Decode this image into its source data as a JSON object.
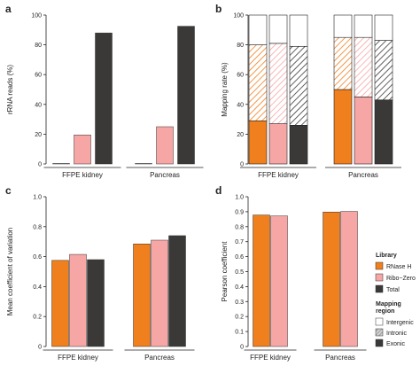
{
  "colors": {
    "rnase_h": "#f07f1e",
    "ribo_zero": "#f7a6a6",
    "total": "#3b3838",
    "axis": "#222222"
  },
  "groups": [
    "FFPE kidney",
    "Pancreas"
  ],
  "panels": [
    {
      "letter": "a"
    },
    {
      "letter": "b"
    },
    {
      "letter": "c"
    },
    {
      "letter": "d"
    }
  ],
  "legend": {
    "library_title": "Library",
    "library_items": [
      {
        "label": "RNase H",
        "color": "#f07f1e"
      },
      {
        "label": "Ribo−Zero",
        "color": "#f7a6a6"
      },
      {
        "label": "Total",
        "color": "#3b3838"
      }
    ],
    "region_title": "Mapping\nregion",
    "region_items": [
      {
        "label": "Intergenic",
        "color": "#ffffff"
      },
      {
        "label": "Intronic",
        "color": "#a8a8a8"
      },
      {
        "label": "Exonic",
        "color": "#3b3838"
      }
    ]
  },
  "chart_data": [
    {
      "panel": "a",
      "type": "bar",
      "ylabel": "rRNA reads (%)",
      "ylim": [
        0,
        100
      ],
      "yticks": [
        0,
        20,
        40,
        60,
        80,
        100
      ],
      "categories": [
        "FFPE kidney",
        "Pancreas"
      ],
      "series": [
        {
          "name": "RNase H",
          "values": [
            0.3,
            0.3
          ]
        },
        {
          "name": "Ribo−Zero",
          "values": [
            19.5,
            25.0
          ]
        },
        {
          "name": "Total",
          "values": [
            88.0,
            92.5
          ]
        }
      ]
    },
    {
      "panel": "b",
      "type": "bar",
      "stacked": true,
      "ylabel": "Mapping rate (%)",
      "ylim": [
        0,
        100
      ],
      "yticks": [
        0,
        20,
        40,
        60,
        80,
        100
      ],
      "categories": [
        "FFPE kidney",
        "Pancreas"
      ],
      "series": [
        {
          "name": "RNase H",
          "exonic": [
            29,
            50
          ],
          "intronic": [
            51,
            35
          ],
          "intergenic": [
            20,
            15
          ]
        },
        {
          "name": "Ribo−Zero",
          "exonic": [
            27,
            45
          ],
          "intronic": [
            54,
            40
          ],
          "intergenic": [
            19,
            15
          ]
        },
        {
          "name": "Total",
          "exonic": [
            26,
            43
          ],
          "intronic": [
            53,
            40
          ],
          "intergenic": [
            21,
            17
          ]
        }
      ]
    },
    {
      "panel": "c",
      "type": "bar",
      "ylabel": "Mean coefficient of variation",
      "ylim": [
        0,
        1.0
      ],
      "yticks": [
        0,
        0.2,
        0.4,
        0.6,
        0.8,
        1.0
      ],
      "yticklabels": [
        "0",
        "0.2",
        "0.4",
        "0.6",
        "0.8",
        "1.0"
      ],
      "categories": [
        "FFPE kidney",
        "Pancreas"
      ],
      "series": [
        {
          "name": "RNase H",
          "values": [
            0.575,
            0.685
          ]
        },
        {
          "name": "Ribo−Zero",
          "values": [
            0.615,
            0.71
          ]
        },
        {
          "name": "Total",
          "values": [
            0.58,
            0.74
          ]
        }
      ]
    },
    {
      "panel": "d",
      "type": "bar",
      "ylabel": "Pearson coefficient",
      "ylim": [
        0,
        1.0
      ],
      "yticks": [
        0,
        0.1,
        0.2,
        0.3,
        0.4,
        0.5,
        0.6,
        0.7,
        0.8,
        0.9,
        1.0
      ],
      "yticklabels": [
        "0",
        "0.1",
        "0.2",
        "0.3",
        "0.4",
        "0.5",
        "0.6",
        "0.7",
        "0.8",
        "0.9",
        "1.0"
      ],
      "categories": [
        "FFPE kidney",
        "Pancreas"
      ],
      "series": [
        {
          "name": "RNase H",
          "values": [
            0.878,
            0.898
          ]
        },
        {
          "name": "Ribo−Zero",
          "values": [
            0.872,
            0.902
          ]
        }
      ]
    }
  ]
}
